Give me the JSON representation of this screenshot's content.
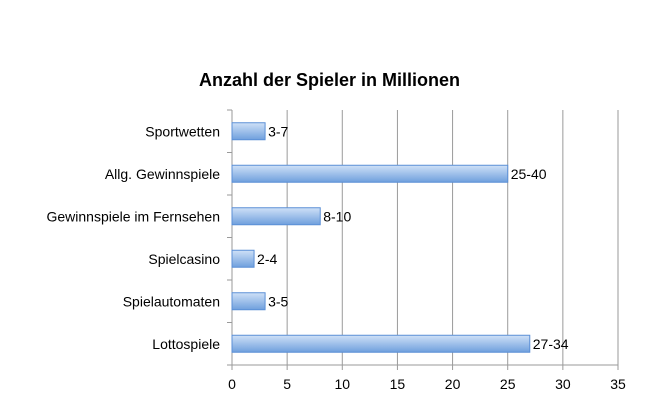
{
  "chart_data": {
    "type": "bar",
    "orientation": "horizontal",
    "title": "Anzahl der Spieler in Millionen",
    "xlabel": "",
    "ylabel": "",
    "xlim": [
      0,
      35
    ],
    "ticks": [
      "0",
      "5",
      "10",
      "15",
      "20",
      "25",
      "30",
      "35"
    ],
    "grid": true,
    "legend": "none",
    "categories": [
      "Sportwetten",
      "Allg. Gewinnspiele",
      "Gewinnspiele im Fernsehen",
      "Spielcasino",
      "Spielautomaten",
      "Lottospiele"
    ],
    "values": [
      3,
      25,
      8,
      2,
      3,
      27
    ],
    "value_labels": [
      "3-7",
      "25-40",
      "8-10",
      "2-4",
      "3-5",
      "27-34"
    ],
    "colors": {
      "bar_top": "#cfe1f7",
      "bar_bottom": "#6f9fdd",
      "bar_stroke": "#5b8fd6",
      "grid": "#9a9a9a"
    }
  }
}
